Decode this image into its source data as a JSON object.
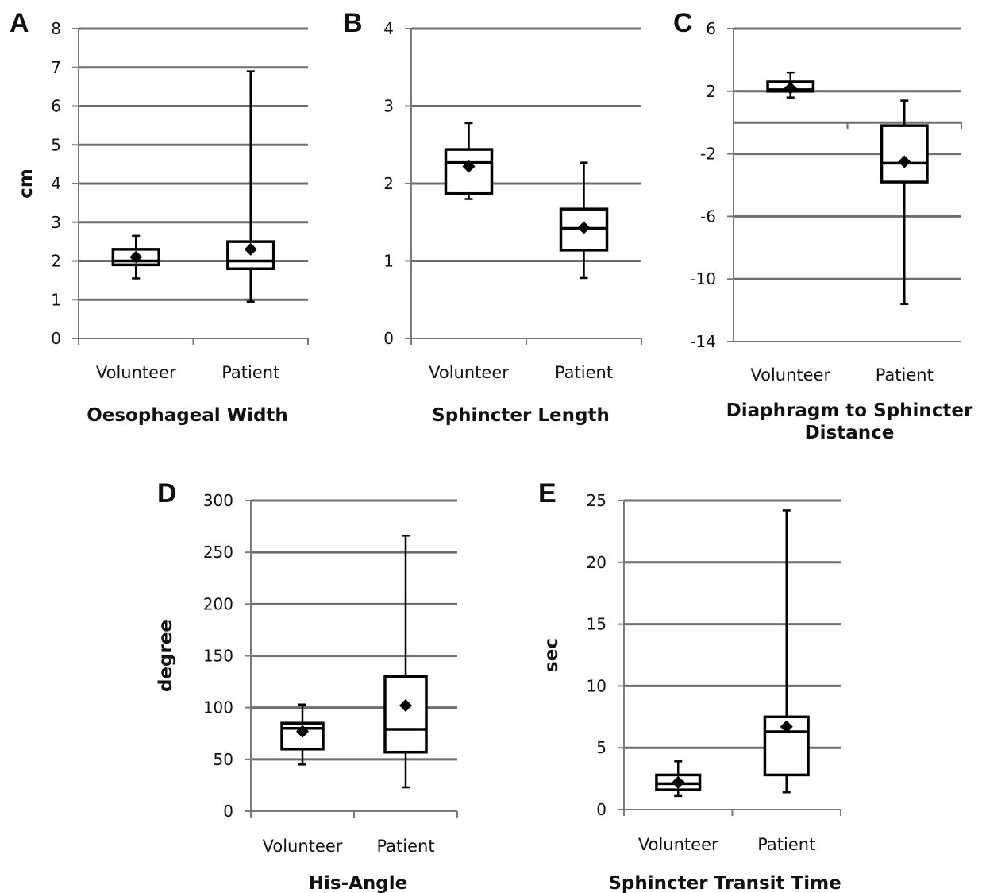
{
  "chart_data": [
    {
      "panel": "A",
      "type": "box",
      "title": "Oesophageal Width",
      "ylabel": "cm",
      "ylim": [
        0,
        8
      ],
      "yticks": [
        0,
        1,
        2,
        3,
        4,
        5,
        6,
        7,
        8
      ],
      "categories": [
        "Volunteer",
        "Patient"
      ],
      "boxes": [
        {
          "category": "Volunteer",
          "min": 1.55,
          "q1": 1.9,
          "median": 2.0,
          "q3": 2.3,
          "max": 2.65,
          "mean": 2.1
        },
        {
          "category": "Patient",
          "min": 0.95,
          "q1": 1.8,
          "median": 2.0,
          "q3": 2.5,
          "max": 6.9,
          "mean": 2.3
        }
      ]
    },
    {
      "panel": "B",
      "type": "box",
      "title": "Sphincter Length",
      "ylabel": "",
      "ylim": [
        0,
        4
      ],
      "yticks": [
        0,
        1,
        2,
        3,
        4
      ],
      "categories": [
        "Volunteer",
        "Patient"
      ],
      "boxes": [
        {
          "category": "Volunteer",
          "min": 1.8,
          "q1": 1.87,
          "median": 2.27,
          "q3": 2.44,
          "max": 2.78,
          "mean": 2.22
        },
        {
          "category": "Patient",
          "min": 0.78,
          "q1": 1.14,
          "median": 1.42,
          "q3": 1.67,
          "max": 2.27,
          "mean": 1.43
        }
      ]
    },
    {
      "panel": "C",
      "type": "box",
      "title": "Diaphragm to Sphincter Distance",
      "ylabel": "",
      "ylim": [
        -14,
        6
      ],
      "yticks": [
        -14,
        -10,
        -6,
        -2,
        2,
        6
      ],
      "categories": [
        "Volunteer",
        "Patient"
      ],
      "boxes": [
        {
          "category": "Volunteer",
          "min": 1.6,
          "q1": 2.0,
          "median": 2.1,
          "q3": 2.6,
          "max": 3.2,
          "mean": 2.2
        },
        {
          "category": "Patient",
          "min": -11.6,
          "q1": -3.8,
          "median": -2.6,
          "q3": -0.2,
          "max": 1.4,
          "mean": -2.5
        }
      ]
    },
    {
      "panel": "D",
      "type": "box",
      "title": "His-Angle",
      "ylabel": "degree",
      "ylim": [
        0,
        300
      ],
      "yticks": [
        0,
        50,
        100,
        150,
        200,
        250,
        300
      ],
      "categories": [
        "Volunteer",
        "Patient"
      ],
      "boxes": [
        {
          "category": "Volunteer",
          "min": 45,
          "q1": 60,
          "median": 80,
          "q3": 85,
          "max": 103,
          "mean": 77
        },
        {
          "category": "Patient",
          "min": 23,
          "q1": 57,
          "median": 79,
          "q3": 130,
          "max": 266,
          "mean": 102
        }
      ]
    },
    {
      "panel": "E",
      "type": "box",
      "title": "Sphincter Transit Time",
      "ylabel": "sec",
      "ylim": [
        0,
        25
      ],
      "yticks": [
        0,
        5,
        10,
        15,
        20,
        25
      ],
      "categories": [
        "Volunteer",
        "Patient"
      ],
      "boxes": [
        {
          "category": "Volunteer",
          "min": 1.1,
          "q1": 1.6,
          "median": 2.1,
          "q3": 2.8,
          "max": 3.9,
          "mean": 2.2
        },
        {
          "category": "Patient",
          "min": 1.4,
          "q1": 2.8,
          "median": 6.3,
          "q3": 7.5,
          "max": 24.2,
          "mean": 6.7
        }
      ]
    }
  ]
}
